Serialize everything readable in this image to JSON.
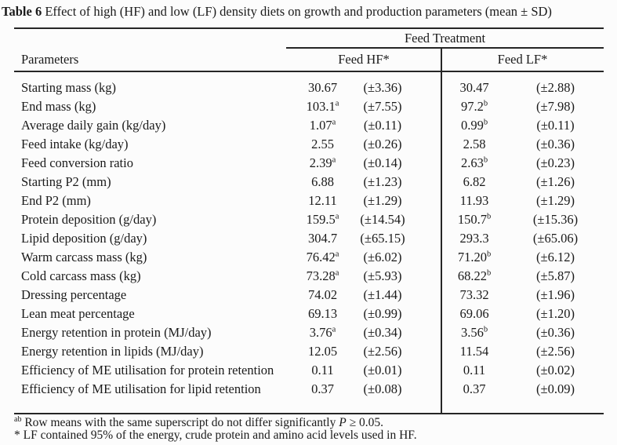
{
  "title": {
    "label": "Table 6",
    "text": " Effect of high (HF) and low (LF) density diets on growth and production parameters (mean ± SD)"
  },
  "table": {
    "group_header": "Feed Treatment",
    "col_param": "Parameters",
    "col_hf": "Feed HF*",
    "col_lf": "Feed LF*",
    "rows": [
      {
        "param": "Starting mass (kg)",
        "hf": "30.67",
        "hf_sup": "",
        "hf_sd": "(±3.36)",
        "lf": "30.47",
        "lf_sup": "",
        "lf_sd": "(±2.88)"
      },
      {
        "param": "End mass (kg)",
        "hf": "103.1",
        "hf_sup": "a",
        "hf_sd": "(±7.55)",
        "lf": "97.2",
        "lf_sup": "b",
        "lf_sd": "(±7.98)"
      },
      {
        "param": "Average daily gain (kg/day)",
        "hf": "1.07",
        "hf_sup": "a",
        "hf_sd": "(±0.11)",
        "lf": "0.99",
        "lf_sup": "b",
        "lf_sd": "(±0.11)"
      },
      {
        "param": "Feed intake (kg/day)",
        "hf": "2.55",
        "hf_sup": "",
        "hf_sd": "(±0.26)",
        "lf": "2.58",
        "lf_sup": "",
        "lf_sd": "(±0.36)"
      },
      {
        "param": "Feed conversion ratio",
        "hf": "2.39",
        "hf_sup": "a",
        "hf_sd": "(±0.14)",
        "lf": "2.63",
        "lf_sup": "b",
        "lf_sd": "(±0.23)"
      },
      {
        "param": "Starting P2 (mm)",
        "hf": "6.88",
        "hf_sup": "",
        "hf_sd": "(±1.23)",
        "lf": "6.82",
        "lf_sup": "",
        "lf_sd": "(±1.26)"
      },
      {
        "param": "End P2 (mm)",
        "hf": "12.11",
        "hf_sup": "",
        "hf_sd": "(±1.29)",
        "lf": "11.93",
        "lf_sup": "",
        "lf_sd": "(±1.29)"
      },
      {
        "param": "Protein deposition (g/day)",
        "hf": "159.5",
        "hf_sup": "a",
        "hf_sd": "(±14.54)",
        "lf": "150.7",
        "lf_sup": "b",
        "lf_sd": "(±15.36)"
      },
      {
        "param": "Lipid deposition (g/day)",
        "hf": "304.7",
        "hf_sup": "",
        "hf_sd": "(±65.15)",
        "lf": "293.3",
        "lf_sup": "",
        "lf_sd": "(±65.06)"
      },
      {
        "param": "Warm carcass mass (kg)",
        "hf": "76.42",
        "hf_sup": "a",
        "hf_sd": "(±6.02)",
        "lf": "71.20",
        "lf_sup": "b",
        "lf_sd": "(±6.12)"
      },
      {
        "param": "Cold carcass mass (kg)",
        "hf": "73.28",
        "hf_sup": "a",
        "hf_sd": "(±5.93)",
        "lf": "68.22",
        "lf_sup": "b",
        "lf_sd": "(±5.87)"
      },
      {
        "param": "Dressing percentage",
        "hf": "74.02",
        "hf_sup": "",
        "hf_sd": "(±1.44)",
        "lf": "73.32",
        "lf_sup": "",
        "lf_sd": "(±1.96)"
      },
      {
        "param": "Lean meat percentage",
        "hf": "69.13",
        "hf_sup": "",
        "hf_sd": "(±0.99)",
        "lf": "69.06",
        "lf_sup": "",
        "lf_sd": "(±1.20)"
      },
      {
        "param": "Energy retention in protein (MJ/day)",
        "hf": "3.76",
        "hf_sup": "a",
        "hf_sd": "(±0.34)",
        "lf": "3.56",
        "lf_sup": "b",
        "lf_sd": "(±0.36)"
      },
      {
        "param": "Energy retention in lipids (MJ/day)",
        "hf": "12.05",
        "hf_sup": "",
        "hf_sd": "(±2.56)",
        "lf": "11.54",
        "lf_sup": "",
        "lf_sd": "(±2.56)"
      },
      {
        "param": "Efficiency of ME utilisation for protein retention",
        "hf": "0.11",
        "hf_sup": "",
        "hf_sd": "(±0.01)",
        "lf": "0.11",
        "lf_sup": "",
        "lf_sd": "(±0.02)"
      },
      {
        "param": "Efficiency of ME utilisation for lipid retention",
        "hf": "0.37",
        "hf_sup": "",
        "hf_sd": "(±0.08)",
        "lf": "0.37",
        "lf_sup": "",
        "lf_sd": "(±0.09)"
      }
    ]
  },
  "footnotes": {
    "significance": {
      "sup": "ab",
      "pre": " Row means with the same superscript do not differ significantly ",
      "italic": "P",
      "post": " ≥ 0.05."
    },
    "lf_definition": "* LF contained 95% of the energy, crude protein and amino acid levels used in HF."
  }
}
